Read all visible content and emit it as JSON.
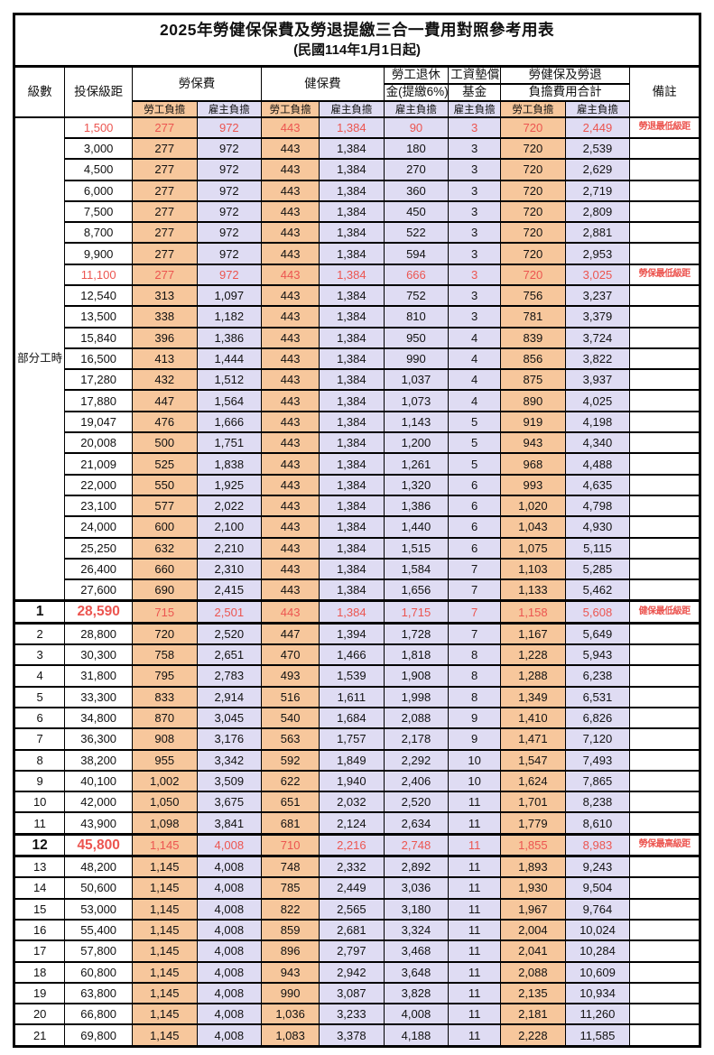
{
  "title": "2025年勞健保保費及勞退提繳三合一費用對照參考用表",
  "subtitle": "(民國114年1月1日起)",
  "header": {
    "level": "級數",
    "bracket": "投保級距",
    "labor_insurance": "勞保費",
    "health_insurance": "健保費",
    "pension_line1": "勞工退休",
    "pension_line2": "金(提繳6%)",
    "wage_fund_line1": "工資墊償",
    "wage_fund_line2": "基金",
    "total_line1": "勞健保及勞退",
    "total_line2": "負擔費用合計",
    "remark": "備註",
    "employee_burden": "勞工負擔",
    "employer_burden": "雇主負擔"
  },
  "part_time_label": "部分工時",
  "colors": {
    "employee_bg": "#F7C79C",
    "employer_bg": "#DFDCF3",
    "highlight_red": "#EC5550"
  },
  "rows": [
    {
      "level": "",
      "bracket": "1,500",
      "li_emp": "277",
      "li_er": "972",
      "hi_emp": "443",
      "hi_er": "1,384",
      "pension": "90",
      "fund": "3",
      "tot_emp": "720",
      "tot_er": "2,449",
      "remark": "勞退最低級距",
      "red": true,
      "thick": false
    },
    {
      "level": "",
      "bracket": "3,000",
      "li_emp": "277",
      "li_er": "972",
      "hi_emp": "443",
      "hi_er": "1,384",
      "pension": "180",
      "fund": "3",
      "tot_emp": "720",
      "tot_er": "2,539",
      "remark": "",
      "red": false,
      "thick": false
    },
    {
      "level": "",
      "bracket": "4,500",
      "li_emp": "277",
      "li_er": "972",
      "hi_emp": "443",
      "hi_er": "1,384",
      "pension": "270",
      "fund": "3",
      "tot_emp": "720",
      "tot_er": "2,629",
      "remark": "",
      "red": false,
      "thick": false
    },
    {
      "level": "",
      "bracket": "6,000",
      "li_emp": "277",
      "li_er": "972",
      "hi_emp": "443",
      "hi_er": "1,384",
      "pension": "360",
      "fund": "3",
      "tot_emp": "720",
      "tot_er": "2,719",
      "remark": "",
      "red": false,
      "thick": false
    },
    {
      "level": "",
      "bracket": "7,500",
      "li_emp": "277",
      "li_er": "972",
      "hi_emp": "443",
      "hi_er": "1,384",
      "pension": "450",
      "fund": "3",
      "tot_emp": "720",
      "tot_er": "2,809",
      "remark": "",
      "red": false,
      "thick": false
    },
    {
      "level": "",
      "bracket": "8,700",
      "li_emp": "277",
      "li_er": "972",
      "hi_emp": "443",
      "hi_er": "1,384",
      "pension": "522",
      "fund": "3",
      "tot_emp": "720",
      "tot_er": "2,881",
      "remark": "",
      "red": false,
      "thick": false
    },
    {
      "level": "",
      "bracket": "9,900",
      "li_emp": "277",
      "li_er": "972",
      "hi_emp": "443",
      "hi_er": "1,384",
      "pension": "594",
      "fund": "3",
      "tot_emp": "720",
      "tot_er": "2,953",
      "remark": "",
      "red": false,
      "thick": false
    },
    {
      "level": "",
      "bracket": "11,100",
      "li_emp": "277",
      "li_er": "972",
      "hi_emp": "443",
      "hi_er": "1,384",
      "pension": "666",
      "fund": "3",
      "tot_emp": "720",
      "tot_er": "3,025",
      "remark": "勞保最低級距",
      "red": true,
      "thick": false
    },
    {
      "level": "",
      "bracket": "12,540",
      "li_emp": "313",
      "li_er": "1,097",
      "hi_emp": "443",
      "hi_er": "1,384",
      "pension": "752",
      "fund": "3",
      "tot_emp": "756",
      "tot_er": "3,237",
      "remark": "",
      "red": false,
      "thick": false
    },
    {
      "level": "",
      "bracket": "13,500",
      "li_emp": "338",
      "li_er": "1,182",
      "hi_emp": "443",
      "hi_er": "1,384",
      "pension": "810",
      "fund": "3",
      "tot_emp": "781",
      "tot_er": "3,379",
      "remark": "",
      "red": false,
      "thick": false
    },
    {
      "level": "",
      "bracket": "15,840",
      "li_emp": "396",
      "li_er": "1,386",
      "hi_emp": "443",
      "hi_er": "1,384",
      "pension": "950",
      "fund": "4",
      "tot_emp": "839",
      "tot_er": "3,724",
      "remark": "",
      "red": false,
      "thick": false
    },
    {
      "level": "",
      "bracket": "16,500",
      "li_emp": "413",
      "li_er": "1,444",
      "hi_emp": "443",
      "hi_er": "1,384",
      "pension": "990",
      "fund": "4",
      "tot_emp": "856",
      "tot_er": "3,822",
      "remark": "",
      "red": false,
      "thick": false
    },
    {
      "level": "",
      "bracket": "17,280",
      "li_emp": "432",
      "li_er": "1,512",
      "hi_emp": "443",
      "hi_er": "1,384",
      "pension": "1,037",
      "fund": "4",
      "tot_emp": "875",
      "tot_er": "3,937",
      "remark": "",
      "red": false,
      "thick": false
    },
    {
      "level": "",
      "bracket": "17,880",
      "li_emp": "447",
      "li_er": "1,564",
      "hi_emp": "443",
      "hi_er": "1,384",
      "pension": "1,073",
      "fund": "4",
      "tot_emp": "890",
      "tot_er": "4,025",
      "remark": "",
      "red": false,
      "thick": false
    },
    {
      "level": "",
      "bracket": "19,047",
      "li_emp": "476",
      "li_er": "1,666",
      "hi_emp": "443",
      "hi_er": "1,384",
      "pension": "1,143",
      "fund": "5",
      "tot_emp": "919",
      "tot_er": "4,198",
      "remark": "",
      "red": false,
      "thick": false
    },
    {
      "level": "",
      "bracket": "20,008",
      "li_emp": "500",
      "li_er": "1,751",
      "hi_emp": "443",
      "hi_er": "1,384",
      "pension": "1,200",
      "fund": "5",
      "tot_emp": "943",
      "tot_er": "4,340",
      "remark": "",
      "red": false,
      "thick": false
    },
    {
      "level": "",
      "bracket": "21,009",
      "li_emp": "525",
      "li_er": "1,838",
      "hi_emp": "443",
      "hi_er": "1,384",
      "pension": "1,261",
      "fund": "5",
      "tot_emp": "968",
      "tot_er": "4,488",
      "remark": "",
      "red": false,
      "thick": false
    },
    {
      "level": "",
      "bracket": "22,000",
      "li_emp": "550",
      "li_er": "1,925",
      "hi_emp": "443",
      "hi_er": "1,384",
      "pension": "1,320",
      "fund": "6",
      "tot_emp": "993",
      "tot_er": "4,635",
      "remark": "",
      "red": false,
      "thick": false
    },
    {
      "level": "",
      "bracket": "23,100",
      "li_emp": "577",
      "li_er": "2,022",
      "hi_emp": "443",
      "hi_er": "1,384",
      "pension": "1,386",
      "fund": "6",
      "tot_emp": "1,020",
      "tot_er": "4,798",
      "remark": "",
      "red": false,
      "thick": false
    },
    {
      "level": "",
      "bracket": "24,000",
      "li_emp": "600",
      "li_er": "2,100",
      "hi_emp": "443",
      "hi_er": "1,384",
      "pension": "1,440",
      "fund": "6",
      "tot_emp": "1,043",
      "tot_er": "4,930",
      "remark": "",
      "red": false,
      "thick": false
    },
    {
      "level": "",
      "bracket": "25,250",
      "li_emp": "632",
      "li_er": "2,210",
      "hi_emp": "443",
      "hi_er": "1,384",
      "pension": "1,515",
      "fund": "6",
      "tot_emp": "1,075",
      "tot_er": "5,115",
      "remark": "",
      "red": false,
      "thick": false
    },
    {
      "level": "",
      "bracket": "26,400",
      "li_emp": "660",
      "li_er": "2,310",
      "hi_emp": "443",
      "hi_er": "1,384",
      "pension": "1,584",
      "fund": "7",
      "tot_emp": "1,103",
      "tot_er": "5,285",
      "remark": "",
      "red": false,
      "thick": false
    },
    {
      "level": "",
      "bracket": "27,600",
      "li_emp": "690",
      "li_er": "2,415",
      "hi_emp": "443",
      "hi_er": "1,384",
      "pension": "1,656",
      "fund": "7",
      "tot_emp": "1,133",
      "tot_er": "5,462",
      "remark": "",
      "red": false,
      "thick": false
    },
    {
      "level": "1",
      "bracket": "28,590",
      "li_emp": "715",
      "li_er": "2,501",
      "hi_emp": "443",
      "hi_er": "1,384",
      "pension": "1,715",
      "fund": "7",
      "tot_emp": "1,158",
      "tot_er": "5,608",
      "remark": "健保最低級距",
      "red": true,
      "thick": true
    },
    {
      "level": "2",
      "bracket": "28,800",
      "li_emp": "720",
      "li_er": "2,520",
      "hi_emp": "447",
      "hi_er": "1,394",
      "pension": "1,728",
      "fund": "7",
      "tot_emp": "1,167",
      "tot_er": "5,649",
      "remark": "",
      "red": false,
      "thick": false
    },
    {
      "level": "3",
      "bracket": "30,300",
      "li_emp": "758",
      "li_er": "2,651",
      "hi_emp": "470",
      "hi_er": "1,466",
      "pension": "1,818",
      "fund": "8",
      "tot_emp": "1,228",
      "tot_er": "5,943",
      "remark": "",
      "red": false,
      "thick": false
    },
    {
      "level": "4",
      "bracket": "31,800",
      "li_emp": "795",
      "li_er": "2,783",
      "hi_emp": "493",
      "hi_er": "1,539",
      "pension": "1,908",
      "fund": "8",
      "tot_emp": "1,288",
      "tot_er": "6,238",
      "remark": "",
      "red": false,
      "thick": false
    },
    {
      "level": "5",
      "bracket": "33,300",
      "li_emp": "833",
      "li_er": "2,914",
      "hi_emp": "516",
      "hi_er": "1,611",
      "pension": "1,998",
      "fund": "8",
      "tot_emp": "1,349",
      "tot_er": "6,531",
      "remark": "",
      "red": false,
      "thick": false
    },
    {
      "level": "6",
      "bracket": "34,800",
      "li_emp": "870",
      "li_er": "3,045",
      "hi_emp": "540",
      "hi_er": "1,684",
      "pension": "2,088",
      "fund": "9",
      "tot_emp": "1,410",
      "tot_er": "6,826",
      "remark": "",
      "red": false,
      "thick": false
    },
    {
      "level": "7",
      "bracket": "36,300",
      "li_emp": "908",
      "li_er": "3,176",
      "hi_emp": "563",
      "hi_er": "1,757",
      "pension": "2,178",
      "fund": "9",
      "tot_emp": "1,471",
      "tot_er": "7,120",
      "remark": "",
      "red": false,
      "thick": false
    },
    {
      "level": "8",
      "bracket": "38,200",
      "li_emp": "955",
      "li_er": "3,342",
      "hi_emp": "592",
      "hi_er": "1,849",
      "pension": "2,292",
      "fund": "10",
      "tot_emp": "1,547",
      "tot_er": "7,493",
      "remark": "",
      "red": false,
      "thick": false
    },
    {
      "level": "9",
      "bracket": "40,100",
      "li_emp": "1,002",
      "li_er": "3,509",
      "hi_emp": "622",
      "hi_er": "1,940",
      "pension": "2,406",
      "fund": "10",
      "tot_emp": "1,624",
      "tot_er": "7,865",
      "remark": "",
      "red": false,
      "thick": false
    },
    {
      "level": "10",
      "bracket": "42,000",
      "li_emp": "1,050",
      "li_er": "3,675",
      "hi_emp": "651",
      "hi_er": "2,032",
      "pension": "2,520",
      "fund": "11",
      "tot_emp": "1,701",
      "tot_er": "8,238",
      "remark": "",
      "red": false,
      "thick": false
    },
    {
      "level": "11",
      "bracket": "43,900",
      "li_emp": "1,098",
      "li_er": "3,841",
      "hi_emp": "681",
      "hi_er": "2,124",
      "pension": "2,634",
      "fund": "11",
      "tot_emp": "1,779",
      "tot_er": "8,610",
      "remark": "",
      "red": false,
      "thick": false
    },
    {
      "level": "12",
      "bracket": "45,800",
      "li_emp": "1,145",
      "li_er": "4,008",
      "hi_emp": "710",
      "hi_er": "2,216",
      "pension": "2,748",
      "fund": "11",
      "tot_emp": "1,855",
      "tot_er": "8,983",
      "remark": "勞保最高級距",
      "red": true,
      "thick": true
    },
    {
      "level": "13",
      "bracket": "48,200",
      "li_emp": "1,145",
      "li_er": "4,008",
      "hi_emp": "748",
      "hi_er": "2,332",
      "pension": "2,892",
      "fund": "11",
      "tot_emp": "1,893",
      "tot_er": "9,243",
      "remark": "",
      "red": false,
      "thick": false
    },
    {
      "level": "14",
      "bracket": "50,600",
      "li_emp": "1,145",
      "li_er": "4,008",
      "hi_emp": "785",
      "hi_er": "2,449",
      "pension": "3,036",
      "fund": "11",
      "tot_emp": "1,930",
      "tot_er": "9,504",
      "remark": "",
      "red": false,
      "thick": false
    },
    {
      "level": "15",
      "bracket": "53,000",
      "li_emp": "1,145",
      "li_er": "4,008",
      "hi_emp": "822",
      "hi_er": "2,565",
      "pension": "3,180",
      "fund": "11",
      "tot_emp": "1,967",
      "tot_er": "9,764",
      "remark": "",
      "red": false,
      "thick": false
    },
    {
      "level": "16",
      "bracket": "55,400",
      "li_emp": "1,145",
      "li_er": "4,008",
      "hi_emp": "859",
      "hi_er": "2,681",
      "pension": "3,324",
      "fund": "11",
      "tot_emp": "2,004",
      "tot_er": "10,024",
      "remark": "",
      "red": false,
      "thick": false
    },
    {
      "level": "17",
      "bracket": "57,800",
      "li_emp": "1,145",
      "li_er": "4,008",
      "hi_emp": "896",
      "hi_er": "2,797",
      "pension": "3,468",
      "fund": "11",
      "tot_emp": "2,041",
      "tot_er": "10,284",
      "remark": "",
      "red": false,
      "thick": false
    },
    {
      "level": "18",
      "bracket": "60,800",
      "li_emp": "1,145",
      "li_er": "4,008",
      "hi_emp": "943",
      "hi_er": "2,942",
      "pension": "3,648",
      "fund": "11",
      "tot_emp": "2,088",
      "tot_er": "10,609",
      "remark": "",
      "red": false,
      "thick": false
    },
    {
      "level": "19",
      "bracket": "63,800",
      "li_emp": "1,145",
      "li_er": "4,008",
      "hi_emp": "990",
      "hi_er": "3,087",
      "pension": "3,828",
      "fund": "11",
      "tot_emp": "2,135",
      "tot_er": "10,934",
      "remark": "",
      "red": false,
      "thick": false
    },
    {
      "level": "20",
      "bracket": "66,800",
      "li_emp": "1,145",
      "li_er": "4,008",
      "hi_emp": "1,036",
      "hi_er": "3,233",
      "pension": "4,008",
      "fund": "11",
      "tot_emp": "2,181",
      "tot_er": "11,260",
      "remark": "",
      "red": false,
      "thick": false
    },
    {
      "level": "21",
      "bracket": "69,800",
      "li_emp": "1,145",
      "li_er": "4,008",
      "hi_emp": "1,083",
      "hi_er": "3,378",
      "pension": "4,188",
      "fund": "11",
      "tot_emp": "2,228",
      "tot_er": "11,585",
      "remark": "",
      "red": false,
      "thick": false
    }
  ]
}
